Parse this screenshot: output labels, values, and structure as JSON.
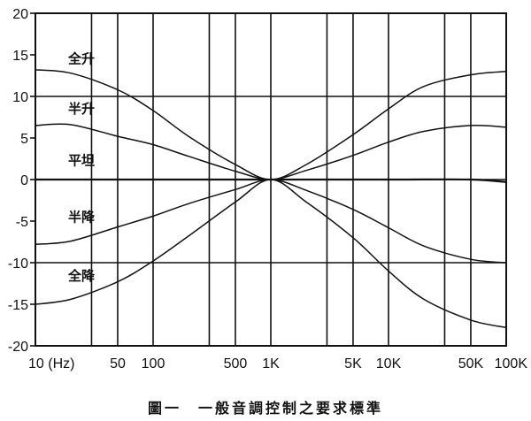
{
  "chart_data": {
    "type": "line",
    "title": "",
    "xlabel": "",
    "ylabel": "",
    "x_scale": "log",
    "xlim": [
      10,
      100000
    ],
    "ylim": [
      -20,
      20
    ],
    "y_ticks": [
      20,
      15,
      10,
      5,
      0,
      -5,
      -10,
      -15,
      -20
    ],
    "y_tick_labels": [
      "20",
      "15",
      "10",
      "5",
      "0",
      "-5",
      "-10",
      "-15",
      "-20"
    ],
    "x_ticks": [
      10,
      50,
      100,
      500,
      1000,
      5000,
      10000,
      50000,
      100000
    ],
    "x_tick_labels": [
      "10 (Hz)",
      "50",
      "100",
      "500",
      "1K",
      "5K",
      "10K",
      "50K",
      "100K"
    ],
    "vertical_gridlines": [
      10,
      30,
      50,
      100,
      300,
      500,
      1000,
      3000,
      5000,
      10000,
      30000,
      50000,
      100000
    ],
    "horizontal_gridlines": [
      10,
      0,
      -10
    ],
    "grid": true,
    "series": [
      {
        "name": "全升",
        "x": [
          10,
          20,
          50,
          100,
          200,
          500,
          1000,
          2000,
          5000,
          10000,
          20000,
          50000,
          100000
        ],
        "values": [
          13.2,
          12.8,
          10.8,
          8.3,
          5.2,
          1.8,
          0,
          1.8,
          5.4,
          8.5,
          11.2,
          12.6,
          13.0
        ]
      },
      {
        "name": "半升",
        "x": [
          10,
          20,
          50,
          100,
          200,
          500,
          1000,
          2000,
          5000,
          10000,
          20000,
          50000,
          100000
        ],
        "values": [
          6.5,
          6.6,
          5.2,
          4.2,
          2.8,
          1.0,
          0,
          1.1,
          2.9,
          4.5,
          5.8,
          6.5,
          6.3
        ]
      },
      {
        "name": "平坦",
        "x": [
          10,
          100,
          1000,
          10000,
          50000,
          100000
        ],
        "values": [
          0,
          0,
          0,
          0,
          0,
          -0.3
        ]
      },
      {
        "name": "半降",
        "x": [
          10,
          20,
          50,
          100,
          200,
          500,
          1000,
          2000,
          5000,
          10000,
          20000,
          50000,
          100000
        ],
        "values": [
          -7.8,
          -7.4,
          -5.7,
          -4.4,
          -2.9,
          -1.2,
          0,
          -1.3,
          -3.6,
          -5.8,
          -8.0,
          -9.6,
          -10.0
        ]
      },
      {
        "name": "全降",
        "x": [
          10,
          20,
          50,
          100,
          200,
          500,
          1000,
          2000,
          5000,
          10000,
          20000,
          50000,
          100000
        ],
        "values": [
          -15.0,
          -14.4,
          -12.3,
          -9.8,
          -6.8,
          -2.7,
          0,
          -2.7,
          -7.0,
          -11.0,
          -14.4,
          -16.9,
          -17.8
        ]
      }
    ],
    "series_label_at_y": [
      14.5,
      8.5,
      2.3,
      -4.5,
      -11.6
    ]
  },
  "caption": "圖一　一般音調控制之要求標準"
}
